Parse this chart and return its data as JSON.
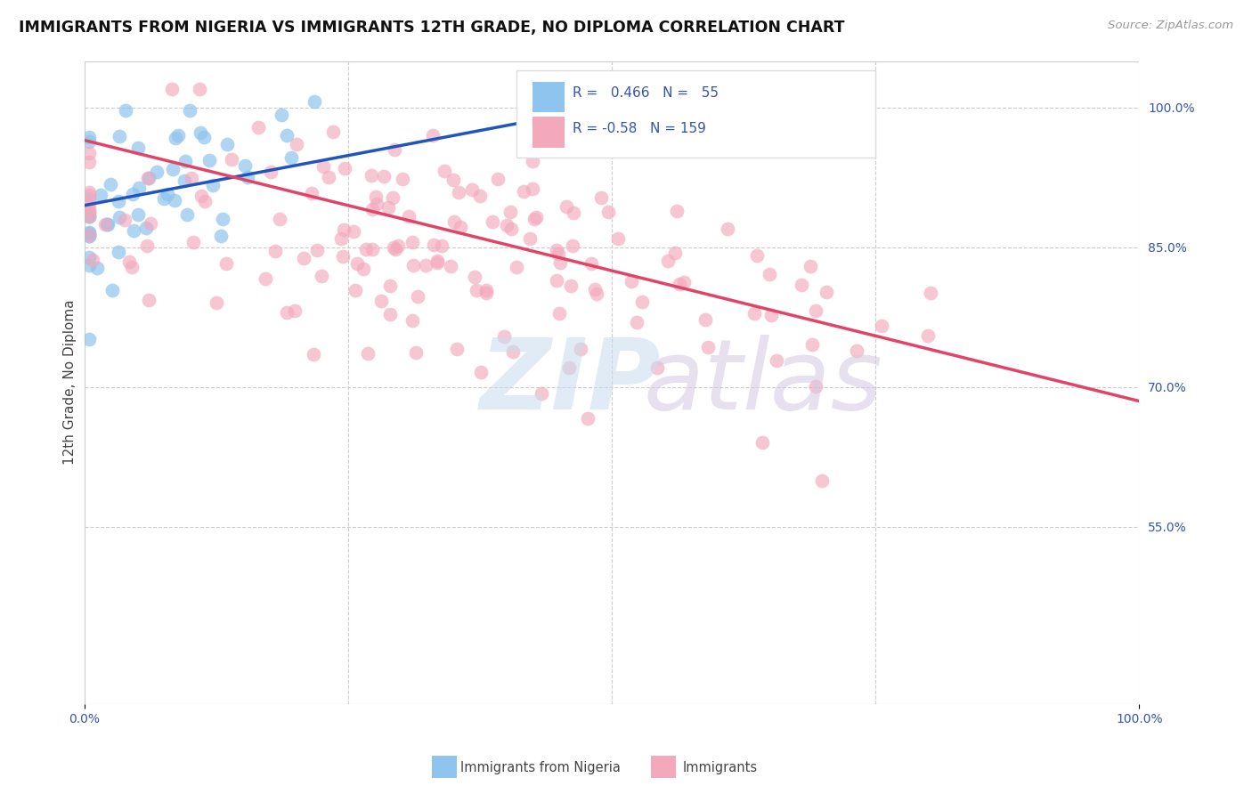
{
  "title": "IMMIGRANTS FROM NIGERIA VS IMMIGRANTS 12TH GRADE, NO DIPLOMA CORRELATION CHART",
  "source": "Source: ZipAtlas.com",
  "ylabel": "12th Grade, No Diploma",
  "legend_label_blue": "Immigrants from Nigeria",
  "legend_label_pink": "Immigrants",
  "R_blue": 0.466,
  "N_blue": 55,
  "R_pink": -0.58,
  "N_pink": 159,
  "x_min": 0.0,
  "x_max": 1.0,
  "y_min": 0.36,
  "y_max": 1.05,
  "yticks_right": [
    1.0,
    0.85,
    0.7,
    0.55
  ],
  "ytick_labels_right": [
    "100.0%",
    "85.0%",
    "70.0%",
    "55.0%"
  ],
  "background_color": "#ffffff",
  "plot_bg_color": "#ffffff",
  "grid_color": "#cccccc",
  "blue_color": "#8EC4EE",
  "pink_color": "#F4A8BC",
  "blue_line_color": "#2255BB",
  "pink_line_color": "#E04466",
  "title_color": "#111111",
  "axis_label_color": "#444444",
  "right_tick_color": "#3355AA",
  "seed_blue": 42,
  "seed_pink": 7
}
